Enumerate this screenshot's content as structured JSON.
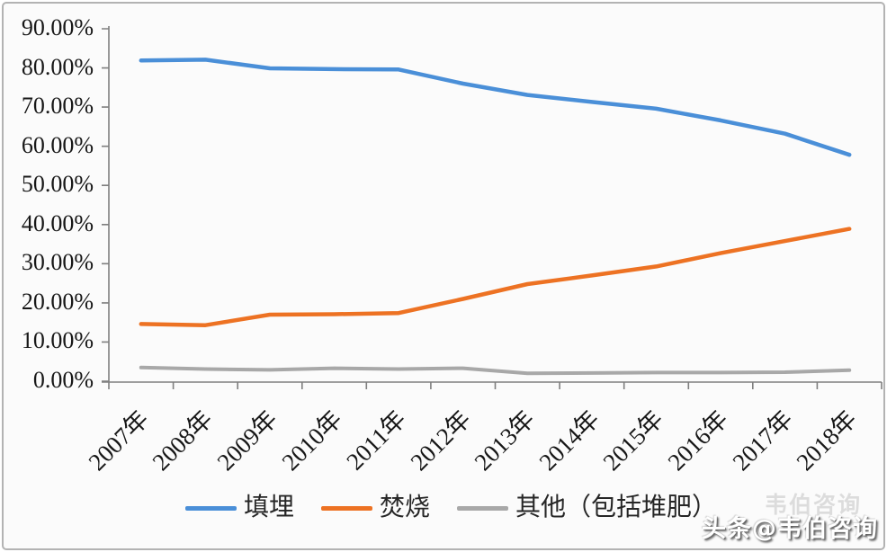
{
  "watermark": {
    "text": "头条@韦伯咨询",
    "ghost": "韦伯咨询"
  },
  "chart_data": {
    "type": "line",
    "title": "",
    "categories": [
      "2007年",
      "2008年",
      "2009年",
      "2010年",
      "2011年",
      "2012年",
      "2013年",
      "2014年",
      "2015年",
      "2016年",
      "2017年",
      "2018年"
    ],
    "series": [
      {
        "name": "填埋",
        "slug": "landfill",
        "color": "#4a8fd8",
        "values": [
          81.9,
          82.1,
          79.9,
          79.7,
          79.6,
          76.0,
          73.1,
          71.3,
          69.6,
          66.6,
          63.2,
          57.8
        ]
      },
      {
        "name": "焚烧",
        "slug": "incineration",
        "color": "#ed7223",
        "values": [
          14.6,
          14.3,
          17.0,
          17.1,
          17.4,
          21.0,
          24.8,
          27.0,
          29.3,
          32.7,
          35.8,
          38.9
        ]
      },
      {
        "name": "其他（包括堆肥）",
        "slug": "other-composting",
        "color": "#a8a8a8",
        "values": [
          3.5,
          3.1,
          2.9,
          3.3,
          3.1,
          3.3,
          2.0,
          2.1,
          2.2,
          2.2,
          2.3,
          2.8
        ]
      }
    ],
    "ylim": [
      0,
      90
    ],
    "ytick_step": 10,
    "ytick_labels": [
      "0.00%",
      "10.00%",
      "20.00%",
      "30.00%",
      "40.00%",
      "50.00%",
      "60.00%",
      "70.00%",
      "80.00%",
      "90.00%"
    ],
    "xlabel": "",
    "ylabel": "",
    "grid": false,
    "legend_position": "bottom",
    "axis_color": "#7f7f7f",
    "text_color": "#171717"
  }
}
